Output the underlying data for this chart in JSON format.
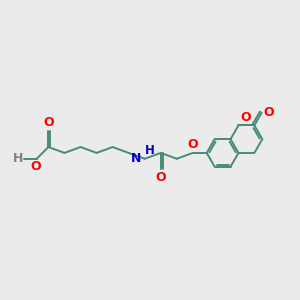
{
  "background_color": "#ebebeb",
  "bond_color": "#4a8a7a",
  "oxygen_color": "#ff0000",
  "nitrogen_color": "#0000cc",
  "hydrogen_color": "#808080",
  "bond_width": 1.4,
  "fig_size": [
    3.0,
    3.0
  ],
  "dpi": 100,
  "xlim": [
    0,
    10
  ],
  "ylim": [
    0,
    10
  ]
}
